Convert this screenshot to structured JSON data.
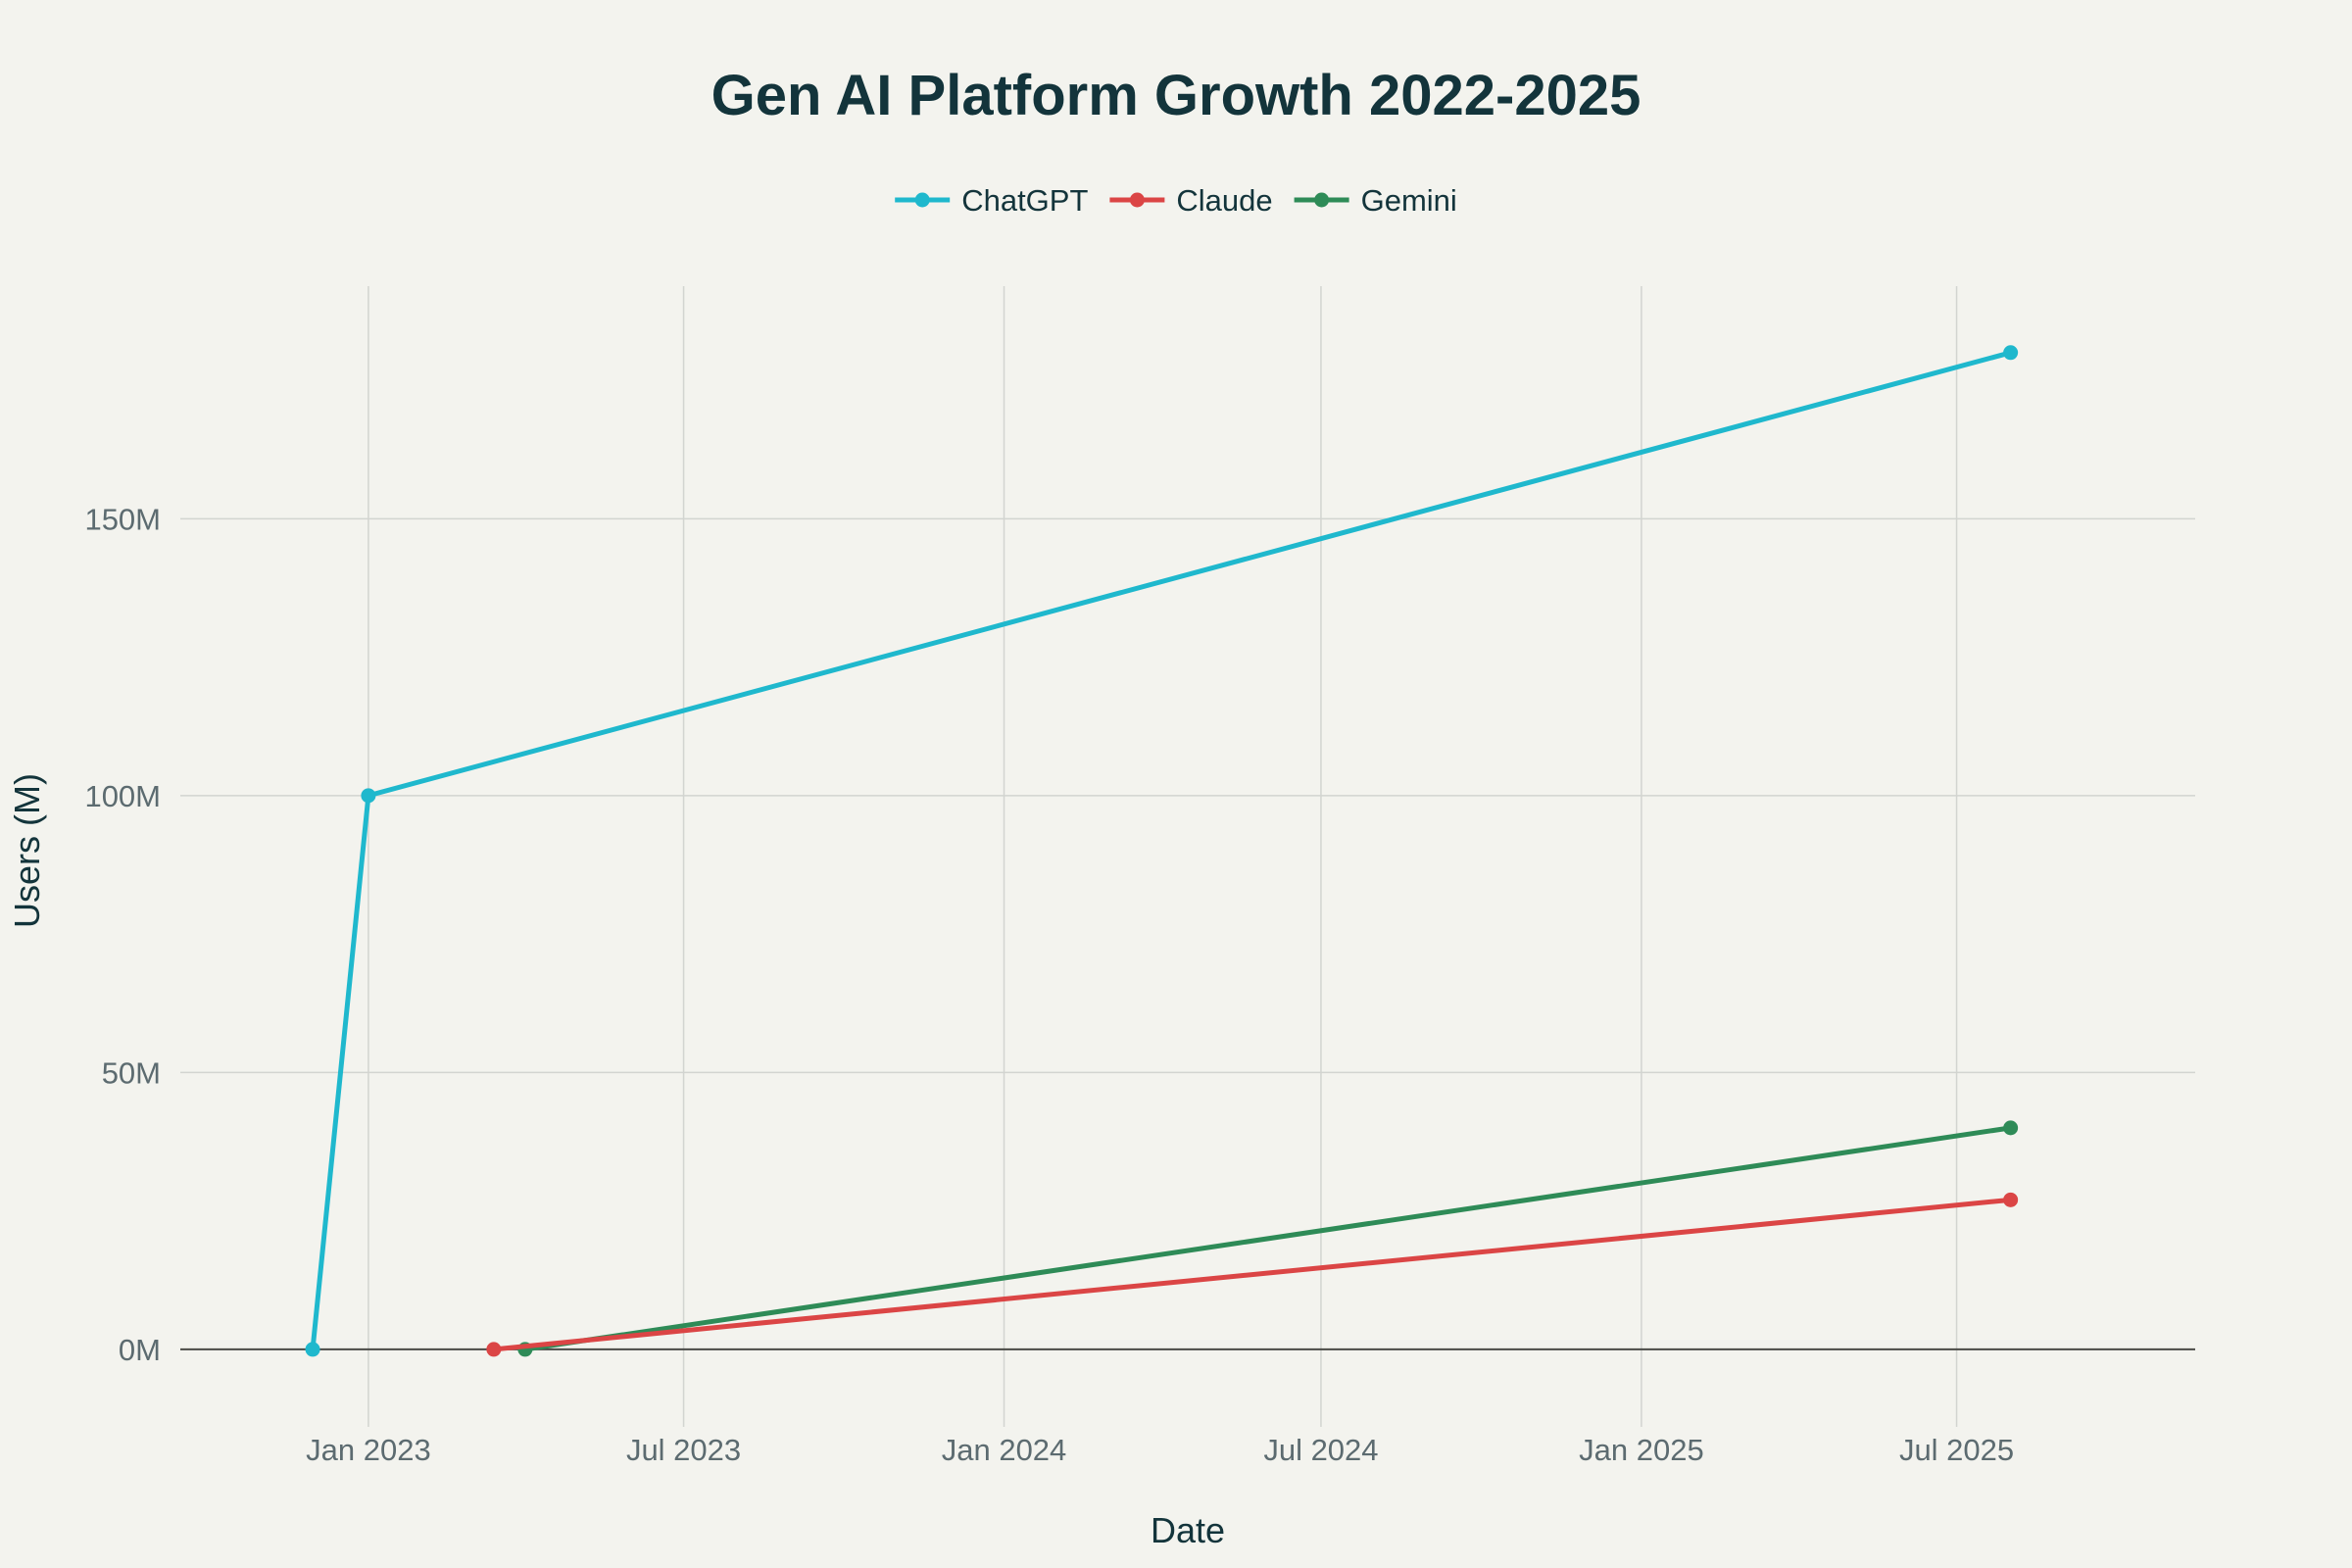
{
  "chart_data": {
    "type": "line",
    "title": "Gen AI Platform Growth 2022-2025",
    "xlabel": "Date",
    "ylabel": "Users (M)",
    "xlim": [
      "2022-09-15",
      "2025-11-15"
    ],
    "ylim": [
      -14,
      192
    ],
    "x_ticks": [
      {
        "date": "2023-01-01",
        "label": "Jan 2023"
      },
      {
        "date": "2023-07-01",
        "label": "Jul 2023"
      },
      {
        "date": "2024-01-01",
        "label": "Jan 2024"
      },
      {
        "date": "2024-07-01",
        "label": "Jul 2024"
      },
      {
        "date": "2025-01-01",
        "label": "Jan 2025"
      },
      {
        "date": "2025-07-01",
        "label": "Jul 2025"
      }
    ],
    "y_ticks": [
      {
        "value": 0,
        "label": "0M"
      },
      {
        "value": 50,
        "label": "50M"
      },
      {
        "value": 100,
        "label": "100M"
      },
      {
        "value": 150,
        "label": "150M"
      }
    ],
    "grid": true,
    "legend_position": "top-center",
    "legend_orientation": "horizontal",
    "series": [
      {
        "name": "ChatGPT",
        "color": "#1fb8cd",
        "points": [
          {
            "x": "2022-11-30",
            "y": 0
          },
          {
            "x": "2023-01-01",
            "y": 100
          },
          {
            "x": "2025-08-01",
            "y": 180
          }
        ]
      },
      {
        "name": "Claude",
        "color": "#db4545",
        "points": [
          {
            "x": "2023-03-14",
            "y": 0
          },
          {
            "x": "2025-08-01",
            "y": 27
          }
        ]
      },
      {
        "name": "Gemini",
        "color": "#2e8b57",
        "points": [
          {
            "x": "2023-04-01",
            "y": 0
          },
          {
            "x": "2025-08-01",
            "y": 40
          }
        ]
      }
    ]
  }
}
